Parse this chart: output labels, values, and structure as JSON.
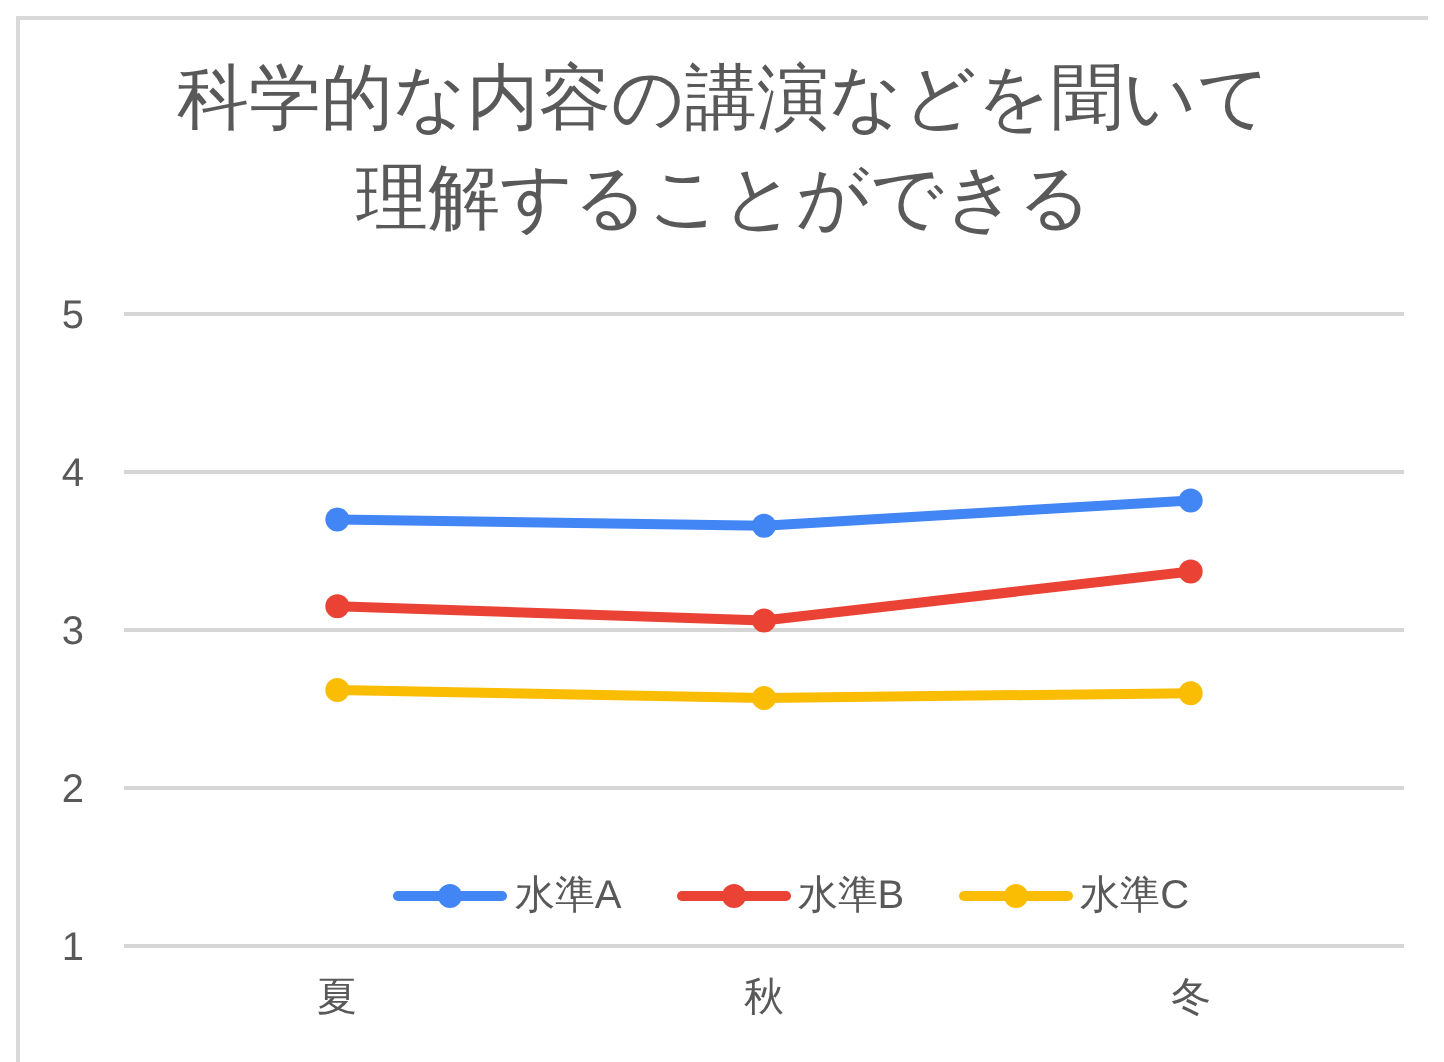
{
  "chart_data": {
    "type": "line",
    "title": "科学的な内容の講演などを聞いて理解することができる",
    "categories": [
      "夏",
      "秋",
      "冬"
    ],
    "series": [
      {
        "name": "水準A",
        "color": "#4285f4",
        "values": [
          3.7,
          3.66,
          3.82
        ]
      },
      {
        "name": "水準B",
        "color": "#ea4335",
        "values": [
          3.15,
          3.06,
          3.37
        ]
      },
      {
        "name": "水準C",
        "color": "#fbbc04",
        "values": [
          2.62,
          2.57,
          2.6
        ]
      }
    ],
    "ylim": [
      1,
      5
    ],
    "yticks": [
      1,
      2,
      3,
      4,
      5
    ],
    "grid": "y",
    "legend": "bottom",
    "marker": "circle",
    "line_style": "solid"
  }
}
